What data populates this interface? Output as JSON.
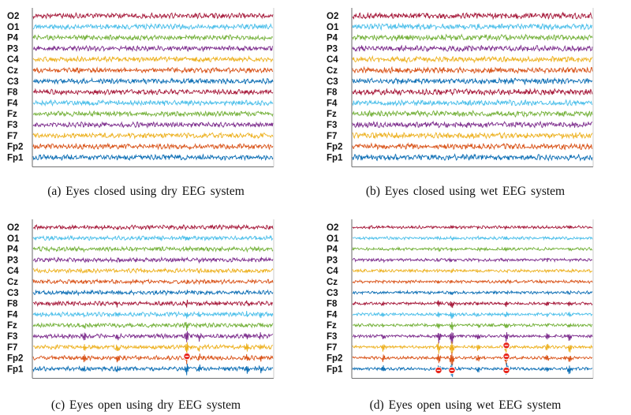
{
  "chart_data": [
    {
      "type": "line",
      "title": "(a) Eyes closed using dry EEG system",
      "channels": [
        "O2",
        "O1",
        "P4",
        "P3",
        "C4",
        "Cz",
        "C3",
        "F8",
        "F4",
        "Fz",
        "F3",
        "F7",
        "Fp2",
        "Fp1"
      ],
      "markers": []
    },
    {
      "type": "line",
      "title": "(b) Eyes closed using wet EEG system",
      "channels": [
        "O2",
        "O1",
        "P4",
        "P3",
        "C4",
        "Cz",
        "C3",
        "F8",
        "F4",
        "Fz",
        "F3",
        "F7",
        "Fp2",
        "Fp1"
      ],
      "markers": []
    },
    {
      "type": "line",
      "title": "(c) Eyes open using dry EEG system",
      "channels": [
        "O2",
        "O1",
        "P4",
        "P3",
        "C4",
        "Cz",
        "C3",
        "F8",
        "F4",
        "Fz",
        "F3",
        "F7",
        "Fp2",
        "Fp1"
      ],
      "markers": [
        {
          "channel": "Fp2"
        }
      ]
    },
    {
      "type": "line",
      "title": "(d) Eyes open using wet EEG system",
      "channels": [
        "O2",
        "O1",
        "P4",
        "P3",
        "C4",
        "Cz",
        "C3",
        "F8",
        "F4",
        "Fz",
        "F3",
        "F7",
        "Fp2",
        "Fp1"
      ],
      "markers": [
        {
          "channel": "F7"
        },
        {
          "channel": "Fp2"
        },
        {
          "channel": "Fp1"
        },
        {
          "channel": "Fp1"
        },
        {
          "channel": "Fp1"
        }
      ]
    }
  ],
  "colors": {
    "O2": "#a6193a",
    "O1": "#4cbfea",
    "P4": "#74b13a",
    "P3": "#7e2f8e",
    "C4": "#edb120",
    "Cz": "#d95319",
    "C3": "#0e6fb5",
    "F8": "#a6193a",
    "F4": "#4cbfea",
    "Fz": "#74b13a",
    "F3": "#7e2f8e",
    "F7": "#edb120",
    "Fp2": "#d95319",
    "Fp1": "#0e6fb5",
    "marker": "#e8261c"
  }
}
